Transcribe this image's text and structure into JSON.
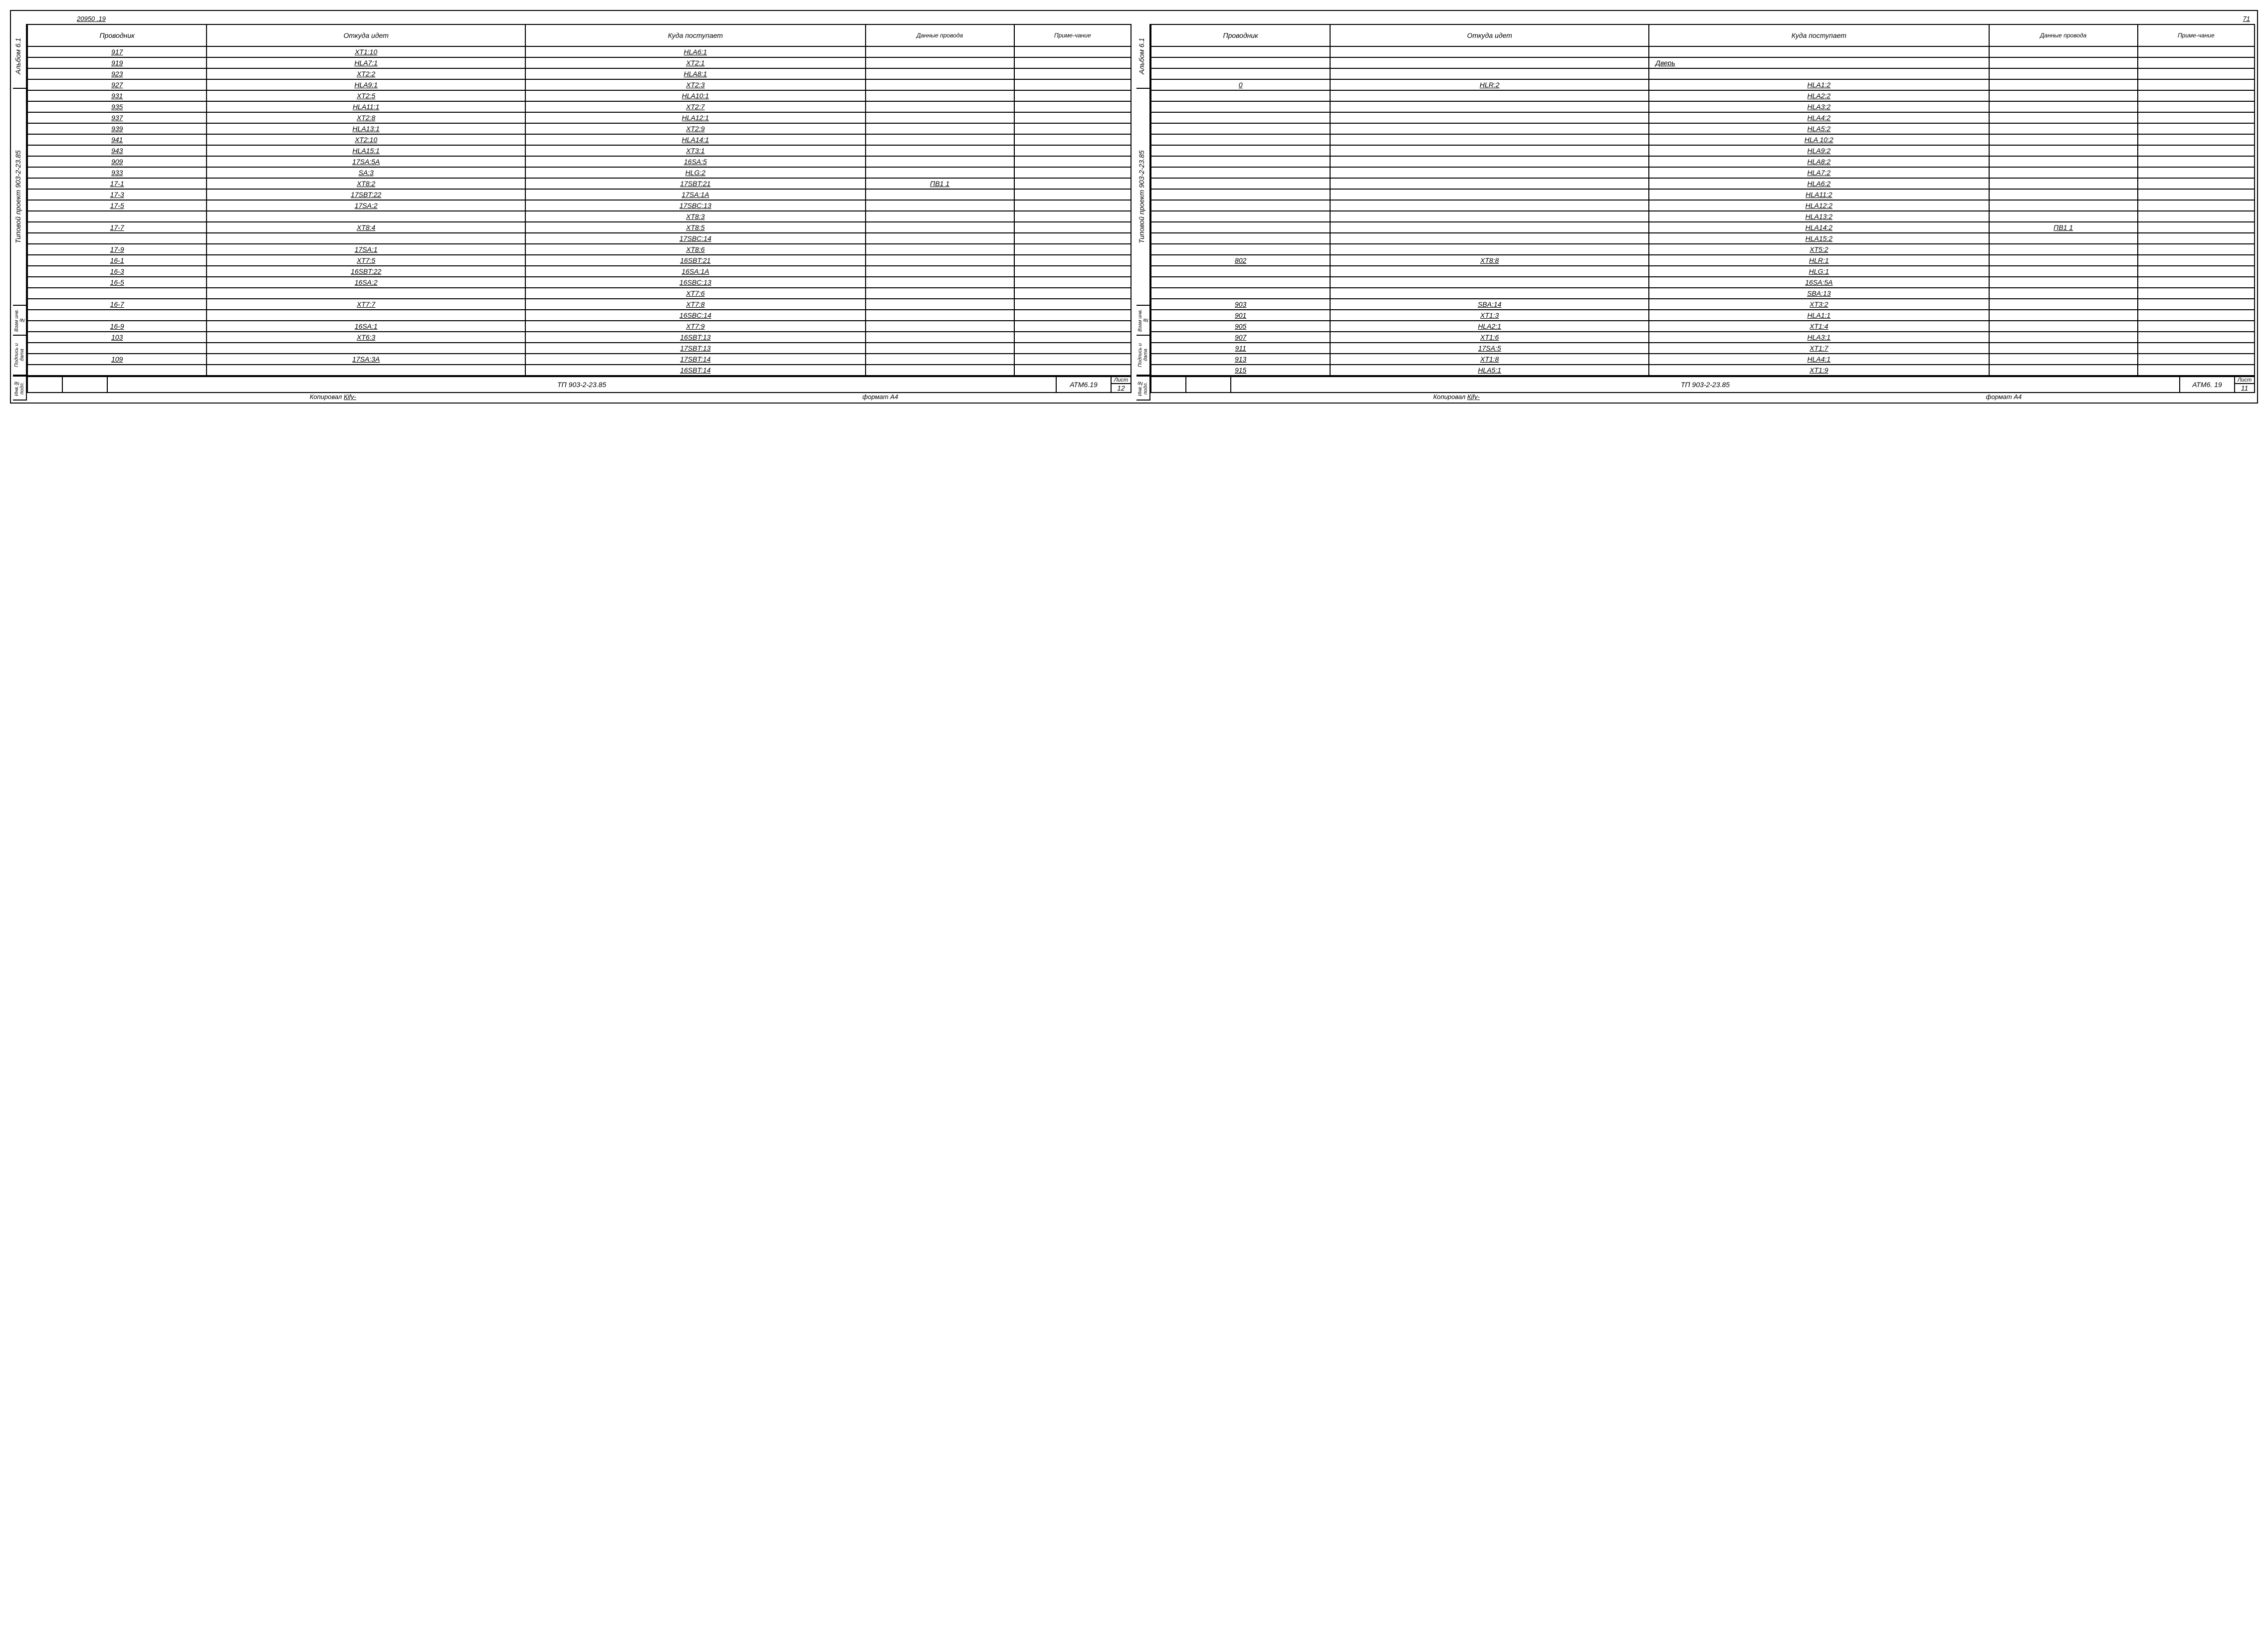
{
  "sheet": {
    "top_left_num": "20950 .19",
    "top_right_num": "71"
  },
  "side_labels": {
    "album": "Альбом 6.1",
    "project": "Типовой  проект  903-2-23.85",
    "l1": "Взам инв.№",
    "l2": "Подпись и дата",
    "l3": "Инв.№ подл."
  },
  "headers": {
    "c1": "Проводник",
    "c2": "Откуда идет",
    "c3": "Куда поступает",
    "c4": "Данные провода",
    "c5": "Приме-чание"
  },
  "left_rows": [
    {
      "p": "917",
      "f": "XT1:10",
      "t": "HLA6:1",
      "d": "",
      "n": ""
    },
    {
      "p": "919",
      "f": "HLA7:1",
      "t": "XT2:1",
      "d": "",
      "n": ""
    },
    {
      "p": "923",
      "f": "XT2:2",
      "t": "HLA8:1",
      "d": "",
      "n": ""
    },
    {
      "p": "927",
      "f": "HLA9:1",
      "t": "XT2:3",
      "d": "",
      "n": ""
    },
    {
      "p": "931",
      "f": "XT2:5",
      "t": "HLA10:1",
      "d": "",
      "n": ""
    },
    {
      "p": "935",
      "f": "HLA11:1",
      "t": "XT2:7",
      "d": "",
      "n": ""
    },
    {
      "p": "937",
      "f": "XT2:8",
      "t": "HLA12:1",
      "d": "",
      "n": ""
    },
    {
      "p": "939",
      "f": "HLA13:1",
      "t": "XT2:9",
      "d": "",
      "n": ""
    },
    {
      "p": "941",
      "f": "XT2:10",
      "t": "HLA14:1",
      "d": "",
      "n": ""
    },
    {
      "p": "943",
      "f": "HLA15:1",
      "t": "XT3:1",
      "d": "",
      "n": ""
    },
    {
      "p": "909",
      "f": "17SA:5A",
      "t": "16SA:5",
      "d": "",
      "n": ""
    },
    {
      "p": "933",
      "f": "SA:3",
      "t": "HLG:2",
      "d": "",
      "n": ""
    },
    {
      "p": "17-1",
      "f": "XT8:2",
      "t": "17SBT:21",
      "d": "ПВ1    1",
      "n": ""
    },
    {
      "p": "17-3",
      "f": "17SBT:22",
      "t": "17SA:1A",
      "d": "",
      "n": ""
    },
    {
      "p": "17-5",
      "f": "17SA:2",
      "t": "17SBC:13",
      "d": "",
      "n": ""
    },
    {
      "p": "",
      "f": "",
      "t": "XT8:3",
      "d": "",
      "n": ""
    },
    {
      "p": "17-7",
      "f": "XT8:4",
      "t": "XT8:5",
      "d": "",
      "n": ""
    },
    {
      "p": "",
      "f": "",
      "t": "17SBC:14",
      "d": "",
      "n": ""
    },
    {
      "p": "17-9",
      "f": "17SA:1",
      "t": "XT8:6",
      "d": "",
      "n": ""
    },
    {
      "p": "16-1",
      "f": "XT7:5",
      "t": "16SBT:21",
      "d": "",
      "n": ""
    },
    {
      "p": "16-3",
      "f": "16SBT:22",
      "t": "16SA:1A",
      "d": "",
      "n": ""
    },
    {
      "p": "16-5",
      "f": "16SA:2",
      "t": "16SBC:13",
      "d": "",
      "n": ""
    },
    {
      "p": "",
      "f": "",
      "t": "XT7:6",
      "d": "",
      "n": ""
    },
    {
      "p": "16-7",
      "f": "XT7:7",
      "t": "XT7:8",
      "d": "",
      "n": ""
    },
    {
      "p": "",
      "f": "",
      "t": "16SBC:14",
      "d": "",
      "n": ""
    },
    {
      "p": "16-9",
      "f": "16SA:1",
      "t": "XT7:9",
      "d": "",
      "n": ""
    },
    {
      "p": "103",
      "f": "XT6:3",
      "t": "16SBT:13",
      "d": "",
      "n": ""
    },
    {
      "p": "",
      "f": "",
      "t": "17SBT:13",
      "d": "",
      "n": ""
    },
    {
      "p": "109",
      "f": "17SA:3A",
      "t": "17SBT:14",
      "d": "",
      "n": ""
    },
    {
      "p": "",
      "f": "",
      "t": "16SBT:14",
      "d": "",
      "n": ""
    }
  ],
  "right_rows": [
    {
      "p": "",
      "f": "",
      "t": "",
      "d": "",
      "n": ""
    },
    {
      "p": "",
      "f": "",
      "t": "Дверь",
      "d": "",
      "n": "",
      "nou": true
    },
    {
      "p": "",
      "f": "",
      "t": "",
      "d": "",
      "n": ""
    },
    {
      "p": "0",
      "f": "HLR:2",
      "t": "HLA1:2",
      "d": "",
      "n": ""
    },
    {
      "p": "",
      "f": "",
      "t": "HLA2:2",
      "d": "",
      "n": ""
    },
    {
      "p": "",
      "f": "",
      "t": "HLA3:2",
      "d": "",
      "n": ""
    },
    {
      "p": "",
      "f": "",
      "t": "HLA4:2",
      "d": "",
      "n": ""
    },
    {
      "p": "",
      "f": "",
      "t": "HLA5:2",
      "d": "",
      "n": ""
    },
    {
      "p": "",
      "f": "",
      "t": "HLA 10:2",
      "d": "",
      "n": ""
    },
    {
      "p": "",
      "f": "",
      "t": "HLA9:2",
      "d": "",
      "n": ""
    },
    {
      "p": "",
      "f": "",
      "t": "HLA8:2",
      "d": "",
      "n": ""
    },
    {
      "p": "",
      "f": "",
      "t": "HLA7:2",
      "d": "",
      "n": ""
    },
    {
      "p": "",
      "f": "",
      "t": "HLA6:2",
      "d": "",
      "n": ""
    },
    {
      "p": "",
      "f": "",
      "t": "HLA11:2",
      "d": "",
      "n": ""
    },
    {
      "p": "",
      "f": "",
      "t": "HLA12:2",
      "d": "",
      "n": ""
    },
    {
      "p": "",
      "f": "",
      "t": "HLA13:2",
      "d": "",
      "n": ""
    },
    {
      "p": "",
      "f": "",
      "t": "HLA14:2",
      "d": "ПВ1    1",
      "n": ""
    },
    {
      "p": "",
      "f": "",
      "t": "HLA15:2",
      "d": "",
      "n": ""
    },
    {
      "p": "",
      "f": "",
      "t": "XT5:2",
      "d": "",
      "n": ""
    },
    {
      "p": "802",
      "f": "XT8:8",
      "t": "HLR:1",
      "d": "",
      "n": ""
    },
    {
      "p": "",
      "f": "",
      "t": "HLG:1",
      "d": "",
      "n": ""
    },
    {
      "p": "",
      "f": "",
      "t": "16SA:5A",
      "d": "",
      "n": ""
    },
    {
      "p": "",
      "f": "",
      "t": "SBA:13",
      "d": "",
      "n": ""
    },
    {
      "p": "903",
      "f": "SBA:14",
      "t": "XT3:2",
      "d": "",
      "n": ""
    },
    {
      "p": "901",
      "f": "XT1:3",
      "t": "HLA1:1",
      "d": "",
      "n": ""
    },
    {
      "p": "905",
      "f": "HLA2:1",
      "t": "XT1:4",
      "d": "",
      "n": ""
    },
    {
      "p": "907",
      "f": "XT1:6",
      "t": "HLA3:1",
      "d": "",
      "n": ""
    },
    {
      "p": "911",
      "f": "17SA:5",
      "t": "XT1:7",
      "d": "",
      "n": ""
    },
    {
      "p": "913",
      "f": "XT1:8",
      "t": "HLA4:1",
      "d": "",
      "n": ""
    },
    {
      "p": "915",
      "f": "HLA5:1",
      "t": "XT1:9",
      "d": "",
      "n": ""
    }
  ],
  "title_left": {
    "code": "ТП 903-2-23.85",
    "doc": "АТМ6.19",
    "sheet_label": "Лист",
    "sheet": "12",
    "copied": "Копировал",
    "sign": "Кify-",
    "format": "формат А4"
  },
  "title_right": {
    "code": "ТП 903-2-23.85",
    "doc": "АТМ6. 19",
    "sheet_label": "Лист",
    "sheet": "11",
    "copied": "Копировал",
    "sign": "Кify-",
    "format": "формат А4"
  }
}
